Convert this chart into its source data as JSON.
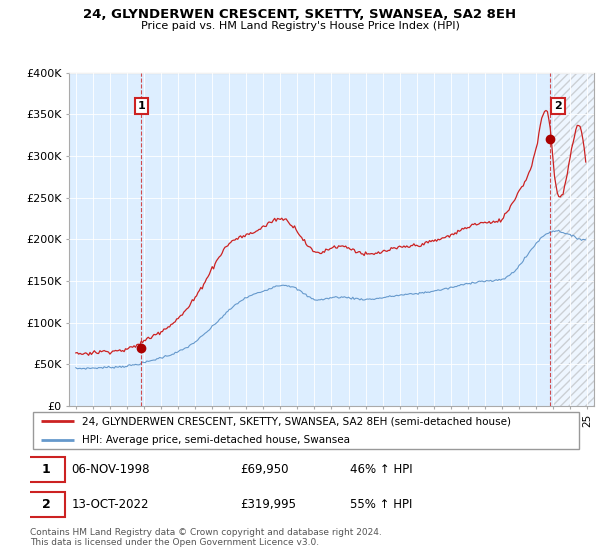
{
  "title": "24, GLYNDERWEN CRESCENT, SKETTY, SWANSEA, SA2 8EH",
  "subtitle": "Price paid vs. HM Land Registry's House Price Index (HPI)",
  "legend_line1": "24, GLYNDERWEN CRESCENT, SKETTY, SWANSEA, SA2 8EH (semi-detached house)",
  "legend_line2": "HPI: Average price, semi-detached house, Swansea",
  "sale1_label": "1",
  "sale1_date": "06-NOV-1998",
  "sale1_price": "£69,950",
  "sale1_hpi": "46% ↑ HPI",
  "sale2_label": "2",
  "sale2_date": "13-OCT-2022",
  "sale2_price": "£319,995",
  "sale2_hpi": "55% ↑ HPI",
  "footer": "Contains HM Land Registry data © Crown copyright and database right 2024.\nThis data is licensed under the Open Government Licence v3.0.",
  "red_color": "#cc2222",
  "blue_color": "#6699cc",
  "chart_bg": "#ddeeff",
  "sale_marker_color": "#aa0000",
  "ylim": [
    0,
    400000
  ],
  "yticks": [
    0,
    50000,
    100000,
    150000,
    200000,
    250000,
    300000,
    350000,
    400000
  ],
  "sale1_x": 1998.85,
  "sale1_y": 69950,
  "sale2_x": 2022.79,
  "sale2_y": 319995,
  "xmin": 1994.6,
  "xmax": 2025.4,
  "hatch_start": 2023.0
}
